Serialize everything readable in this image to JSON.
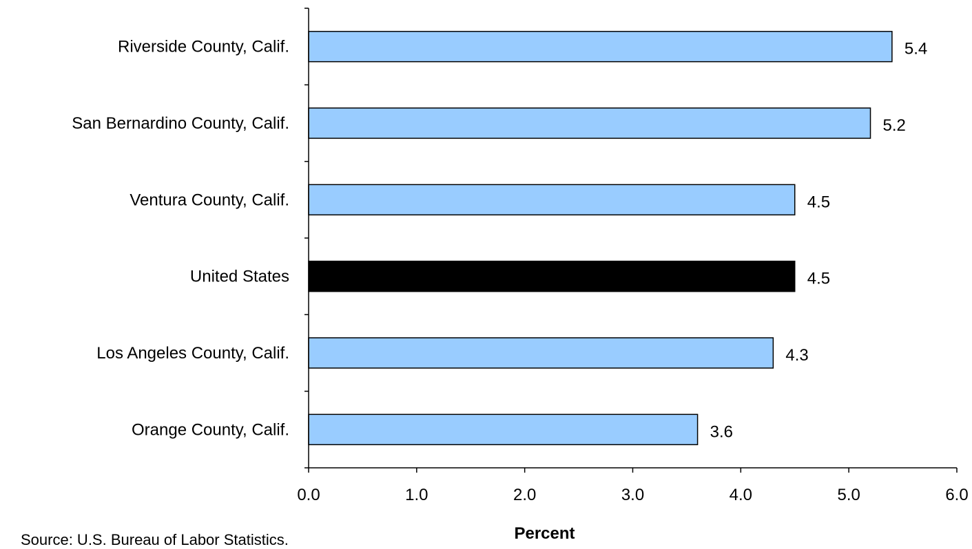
{
  "chart_data": {
    "type": "bar",
    "orientation": "horizontal",
    "categories": [
      "Riverside County, Calif.",
      "San Bernardino County, Calif.",
      "Ventura County, Calif.",
      "United States",
      "Los Angeles County, Calif.",
      "Orange County, Calif."
    ],
    "values": [
      5.4,
      5.2,
      4.5,
      4.5,
      4.3,
      3.6
    ],
    "data_labels": [
      "5.4",
      "5.2",
      "4.5",
      "4.5",
      "4.3",
      "3.6"
    ],
    "bar_colors": [
      "#99CCFF",
      "#99CCFF",
      "#99CCFF",
      "#000000",
      "#99CCFF",
      "#99CCFF"
    ],
    "highlight_category": "United States",
    "xlabel": "Percent",
    "ylabel": "",
    "xlim": [
      0,
      6
    ],
    "xticks": [
      "0.0",
      "1.0",
      "2.0",
      "3.0",
      "4.0",
      "5.0",
      "6.0"
    ],
    "grid": false,
    "legend": "none"
  },
  "source_note": "Source: U.S. Bureau of Labor Statistics."
}
